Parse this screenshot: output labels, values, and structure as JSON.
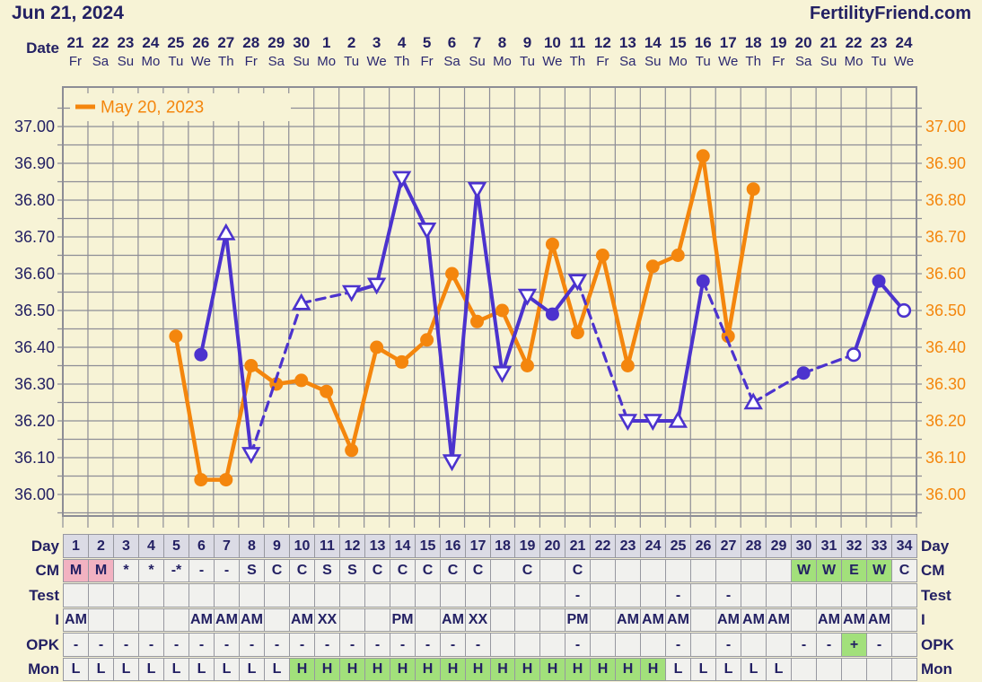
{
  "header": {
    "title": "Jun 21, 2024",
    "brand": "FertilityFriend.com"
  },
  "date_header": {
    "label": "Date",
    "days": [
      "21",
      "22",
      "23",
      "24",
      "25",
      "26",
      "27",
      "28",
      "29",
      "30",
      "1",
      "2",
      "3",
      "4",
      "5",
      "6",
      "7",
      "8",
      "9",
      "10",
      "11",
      "12",
      "13",
      "14",
      "15",
      "16",
      "17",
      "18",
      "19",
      "20",
      "21",
      "22",
      "23",
      "24"
    ],
    "weekdays": [
      "Fr",
      "Sa",
      "Su",
      "Mo",
      "Tu",
      "We",
      "Th",
      "Fr",
      "Sa",
      "Su",
      "Mo",
      "Tu",
      "We",
      "Th",
      "Fr",
      "Sa",
      "Su",
      "Mo",
      "Tu",
      "We",
      "Th",
      "Fr",
      "Sa",
      "Su",
      "Mo",
      "Tu",
      "We",
      "Th",
      "Fr",
      "Sa",
      "Su",
      "Mo",
      "Tu",
      "We"
    ]
  },
  "chart_data": {
    "type": "line",
    "title": "Basal body temperature chart (current cycle vs previous cycle)",
    "x_days": 34,
    "y_axis": {
      "tick_labels": [
        "37.00",
        "36.90",
        "36.80",
        "36.70",
        "36.60",
        "36.50",
        "36.40",
        "36.30",
        "36.20",
        "36.10",
        "36.00"
      ],
      "tick_values": [
        37.0,
        36.9,
        36.8,
        36.7,
        36.6,
        36.5,
        36.4,
        36.3,
        36.2,
        36.1,
        36.0
      ],
      "minor_grid_step": 0.05,
      "display_range": [
        35.95,
        37.05
      ],
      "grid": true,
      "left_label_color": "#232063",
      "right_label_color": "#F4860D"
    },
    "legend": {
      "label": "May 20, 2023",
      "color": "#F4860D",
      "position": "top-left"
    },
    "series": [
      {
        "name": "May 20, 2023 (previous cycle)",
        "color": "#F4860D",
        "line_width": 4.5,
        "points": [
          {
            "day": 5,
            "value": 36.43,
            "marker": "filled-circle"
          },
          {
            "day": 6,
            "value": 36.04,
            "marker": "filled-circle"
          },
          {
            "day": 7,
            "value": 36.04,
            "marker": "filled-circle"
          },
          {
            "day": 8,
            "value": 36.35,
            "marker": "filled-circle"
          },
          {
            "day": 9,
            "value": 36.3,
            "marker": "filled-circle"
          },
          {
            "day": 10,
            "value": 36.31,
            "marker": "filled-circle"
          },
          {
            "day": 11,
            "value": 36.28,
            "marker": "filled-circle"
          },
          {
            "day": 12,
            "value": 36.12,
            "marker": "filled-circle"
          },
          {
            "day": 13,
            "value": 36.4,
            "marker": "filled-circle"
          },
          {
            "day": 14,
            "value": 36.36,
            "marker": "filled-circle"
          },
          {
            "day": 15,
            "value": 36.42,
            "marker": "filled-circle"
          },
          {
            "day": 16,
            "value": 36.6,
            "marker": "filled-circle"
          },
          {
            "day": 17,
            "value": 36.47,
            "marker": "filled-circle"
          },
          {
            "day": 18,
            "value": 36.5,
            "marker": "filled-circle"
          },
          {
            "day": 19,
            "value": 36.35,
            "marker": "filled-circle"
          },
          {
            "day": 20,
            "value": 36.68,
            "marker": "filled-circle"
          },
          {
            "day": 21,
            "value": 36.44,
            "marker": "filled-circle"
          },
          {
            "day": 22,
            "value": 36.65,
            "marker": "filled-circle"
          },
          {
            "day": 23,
            "value": 36.35,
            "marker": "filled-circle"
          },
          {
            "day": 24,
            "value": 36.62,
            "marker": "filled-circle"
          },
          {
            "day": 25,
            "value": 36.65,
            "marker": "filled-circle"
          },
          {
            "day": 26,
            "value": 36.92,
            "marker": "filled-circle"
          },
          {
            "day": 27,
            "value": 36.43,
            "marker": "filled-circle"
          },
          {
            "day": 28,
            "value": 36.83,
            "marker": "filled-circle"
          }
        ]
      },
      {
        "name": "Jun 21, 2024 (current cycle)",
        "color": "#4C33CE",
        "line_width": 4,
        "points": [
          {
            "day": 6,
            "value": 36.38,
            "marker": "filled-circle"
          },
          {
            "day": 7,
            "value": 36.71,
            "marker": "open-triangle-up"
          },
          {
            "day": 8,
            "value": 36.11,
            "marker": "open-triangle-down"
          },
          {
            "day": 10,
            "value": 36.52,
            "marker": "open-triangle-up"
          },
          {
            "day": 12,
            "value": 36.55,
            "marker": "open-triangle-down"
          },
          {
            "day": 13,
            "value": 36.57,
            "marker": "open-triangle-down"
          },
          {
            "day": 14,
            "value": 36.86,
            "marker": "open-triangle-down"
          },
          {
            "day": 15,
            "value": 36.72,
            "marker": "open-triangle-down"
          },
          {
            "day": 16,
            "value": 36.09,
            "marker": "open-triangle-down"
          },
          {
            "day": 17,
            "value": 36.83,
            "marker": "open-triangle-down"
          },
          {
            "day": 18,
            "value": 36.33,
            "marker": "open-triangle-down"
          },
          {
            "day": 19,
            "value": 36.54,
            "marker": "open-triangle-down"
          },
          {
            "day": 20,
            "value": 36.49,
            "marker": "filled-circle"
          },
          {
            "day": 21,
            "value": 36.58,
            "marker": "open-triangle-down"
          },
          {
            "day": 23,
            "value": 36.2,
            "marker": "open-triangle-down"
          },
          {
            "day": 24,
            "value": 36.2,
            "marker": "open-triangle-down"
          },
          {
            "day": 25,
            "value": 36.2,
            "marker": "open-triangle-up"
          },
          {
            "day": 26,
            "value": 36.58,
            "marker": "filled-circle"
          },
          {
            "day": 28,
            "value": 36.25,
            "marker": "open-triangle-up"
          },
          {
            "day": 30,
            "value": 36.33,
            "marker": "filled-circle"
          },
          {
            "day": 32,
            "value": 36.38,
            "marker": "open-circle"
          },
          {
            "day": 33,
            "value": 36.58,
            "marker": "filled-circle"
          },
          {
            "day": 34,
            "value": 36.5,
            "marker": "open-circle"
          }
        ]
      }
    ]
  },
  "table": {
    "left_labels": [
      "Day",
      "CM",
      "Test",
      "I",
      "OPK",
      "Mon"
    ],
    "right_labels": [
      "Day",
      "CM",
      "Test",
      "I",
      "OPK",
      "Mon"
    ],
    "rows": [
      {
        "key": "day",
        "values": [
          "1",
          "2",
          "3",
          "4",
          "5",
          "6",
          "7",
          "8",
          "9",
          "10",
          "11",
          "12",
          "13",
          "14",
          "15",
          "16",
          "17",
          "18",
          "19",
          "20",
          "21",
          "22",
          "23",
          "24",
          "25",
          "26",
          "27",
          "28",
          "29",
          "30",
          "31",
          "32",
          "33",
          "34"
        ],
        "bg": [
          "hdr",
          "hdr",
          "hdr",
          "hdr",
          "hdr",
          "hdr",
          "hdr",
          "hdr",
          "hdr",
          "hdr",
          "hdr",
          "hdr",
          "hdr",
          "hdr",
          "hdr",
          "hdr",
          "hdr",
          "hdr",
          "hdr",
          "hdr",
          "hdr",
          "hdr",
          "hdr",
          "hdr",
          "hdr",
          "hdr",
          "hdr",
          "hdr",
          "hdr",
          "hdr",
          "hdr",
          "hdr",
          "hdr",
          "hdr"
        ]
      },
      {
        "key": "cm",
        "values": [
          "M",
          "M",
          "*",
          "*",
          "-*",
          "-",
          "-",
          "S",
          "C",
          "C",
          "S",
          "S",
          "C",
          "C",
          "C",
          "C",
          "C",
          "",
          "C",
          "",
          "C",
          "",
          "",
          "",
          "",
          "",
          "",
          "",
          "",
          "W",
          "W",
          "E",
          "W",
          "C"
        ],
        "bg": [
          "pink",
          "pink",
          "",
          "",
          "",
          "",
          "",
          "",
          "",
          "",
          "",
          "",
          "",
          "",
          "",
          "",
          "",
          "",
          "",
          "",
          "",
          "",
          "",
          "",
          "",
          "",
          "",
          "",
          "",
          "green",
          "green",
          "green",
          "green",
          ""
        ]
      },
      {
        "key": "test",
        "values": [
          "",
          "",
          "",
          "",
          "",
          "",
          "",
          "",
          "",
          "",
          "",
          "",
          "",
          "",
          "",
          "",
          "",
          "",
          "",
          "",
          "-",
          "",
          "",
          "",
          "-",
          "",
          "-",
          "",
          "",
          "",
          "",
          "",
          "",
          ""
        ],
        "bg": [
          "",
          "",
          "",
          "",
          "",
          "",
          "",
          "",
          "",
          "",
          "",
          "",
          "",
          "",
          "",
          "",
          "",
          "",
          "",
          "",
          "",
          "",
          "",
          "",
          "",
          "",
          "",
          "",
          "",
          "",
          "",
          "",
          "",
          ""
        ]
      },
      {
        "key": "i",
        "values": [
          "AM",
          "",
          "",
          "",
          "",
          "AM",
          "AM",
          "AM",
          "",
          "AM",
          "XX",
          "",
          "",
          "PM",
          "",
          "AM",
          "XX",
          "",
          "",
          "",
          "PM",
          "",
          "AM",
          "AM",
          "AM",
          "",
          "AM",
          "AM",
          "AM",
          "",
          "AM",
          "AM",
          "AM",
          ""
        ],
        "bg": [
          "",
          "",
          "",
          "",
          "",
          "",
          "",
          "",
          "",
          "",
          "",
          "",
          "",
          "",
          "",
          "",
          "",
          "",
          "",
          "",
          "",
          "",
          "",
          "",
          "",
          "",
          "",
          "",
          "",
          "",
          "",
          "",
          "",
          ""
        ]
      },
      {
        "key": "opk",
        "values": [
          "-",
          "-",
          "-",
          "-",
          "-",
          "-",
          "-",
          "-",
          "-",
          "-",
          "-",
          "-",
          "-",
          "-",
          "-",
          "-",
          "-",
          "",
          "",
          "",
          "-",
          "",
          "",
          "",
          "-",
          "",
          "-",
          "",
          "",
          "-",
          "-",
          "+",
          "-",
          ""
        ],
        "bg": [
          "",
          "",
          "",
          "",
          "",
          "",
          "",
          "",
          "",
          "",
          "",
          "",
          "",
          "",
          "",
          "",
          "",
          "",
          "",
          "",
          "",
          "",
          "",
          "",
          "",
          "",
          "",
          "",
          "",
          "",
          "",
          "green",
          "",
          ""
        ]
      },
      {
        "key": "mon",
        "values": [
          "L",
          "L",
          "L",
          "L",
          "L",
          "L",
          "L",
          "L",
          "L",
          "H",
          "H",
          "H",
          "H",
          "H",
          "H",
          "H",
          "H",
          "H",
          "H",
          "H",
          "H",
          "H",
          "H",
          "H",
          "L",
          "L",
          "L",
          "L",
          "L",
          "",
          "",
          "",
          "",
          ""
        ],
        "bg": [
          "",
          "",
          "",
          "",
          "",
          "",
          "",
          "",
          "",
          "green",
          "green",
          "green",
          "green",
          "green",
          "green",
          "green",
          "green",
          "green",
          "green",
          "green",
          "green",
          "green",
          "green",
          "green",
          "",
          "",
          "",
          "",
          "",
          "",
          "",
          "",
          "",
          ""
        ]
      }
    ]
  },
  "colors": {
    "background": "#F7F3D6",
    "grid": "#8D8D96",
    "text_navy": "#232063",
    "current_cycle_purple": "#4C33CE",
    "previous_cycle_orange": "#F4860D",
    "cell_default": "#F1F1EE",
    "cell_header": "#DBDBE5",
    "cell_menses_pink": "#F2B2C1",
    "cell_positive_green": "#A2E07B",
    "cell_border": "#9798A0"
  }
}
